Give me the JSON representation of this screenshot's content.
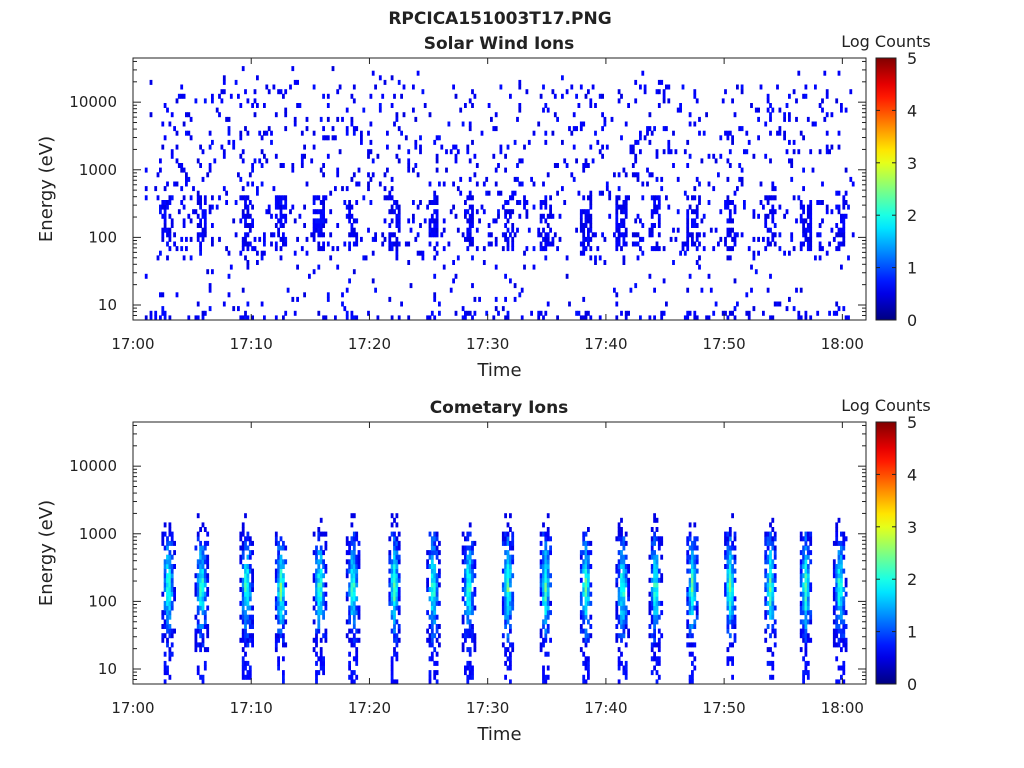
{
  "figure": {
    "title": "RPCICA151003T17.PNG"
  },
  "colorbar": {
    "label": "Log Counts",
    "ticks": [
      0,
      1,
      2,
      3,
      4,
      5
    ],
    "colormap": "jet",
    "colors": [
      "#00008f",
      "#0000ff",
      "#00ffff",
      "#ffff00",
      "#ff0000",
      "#800000"
    ]
  },
  "chart_data": [
    {
      "type": "heatmap",
      "title": "Solar Wind Ions",
      "xlabel": "Time",
      "ylabel": "Energy (eV)",
      "yscale": "log",
      "xlim": [
        "17:00",
        "18:02"
      ],
      "ylim": [
        6,
        45000
      ],
      "xticks": [
        "17:00",
        "17:10",
        "17:20",
        "17:30",
        "17:40",
        "17:50",
        "18:00"
      ],
      "yticks": [
        "10",
        "100",
        "1000",
        "10000"
      ],
      "zlabel": "Log Counts",
      "zlim": [
        0,
        5
      ],
      "data_start": "17:01",
      "data_end": "18:01",
      "burst_times_min": [
        2.9,
        5.7,
        9.5,
        12.4,
        15.7,
        18.5,
        22.0,
        25.3,
        28.3,
        31.6,
        34.8,
        38.2,
        41.3,
        44.1,
        47.2,
        50.4,
        53.8,
        56.8,
        59.7
      ],
      "description_levels": "sparse single counts (log counts 0) scattered from ~6 eV to ~30000 eV, denser clusters near 100-300 eV during bursts"
    },
    {
      "type": "heatmap",
      "title": "Cometary Ions",
      "xlabel": "Time",
      "ylabel": "Energy (eV)",
      "yscale": "log",
      "xlim": [
        "17:00",
        "18:02"
      ],
      "ylim": [
        6,
        45000
      ],
      "xticks": [
        "17:00",
        "17:10",
        "17:20",
        "17:30",
        "17:40",
        "17:50",
        "18:00"
      ],
      "yticks": [
        "10",
        "100",
        "1000",
        "10000"
      ],
      "zlabel": "Log Counts",
      "zlim": [
        0,
        5
      ],
      "data_start": "17:01",
      "data_end": "18:01",
      "burst_times_min": [
        2.9,
        5.7,
        9.5,
        12.4,
        15.7,
        18.5,
        22.0,
        25.3,
        28.3,
        31.6,
        34.8,
        38.2,
        41.3,
        44.1,
        47.2,
        50.4,
        53.8,
        56.8,
        59.7
      ],
      "burst_energy_range_ev": [
        20,
        1000
      ],
      "burst_peak_energy_ev": 150,
      "burst_peak_log_counts": 2.0,
      "description_levels": "periodic vertical bursts every ~3 min, 20-1000 eV, core log counts ~1.5-2"
    }
  ]
}
